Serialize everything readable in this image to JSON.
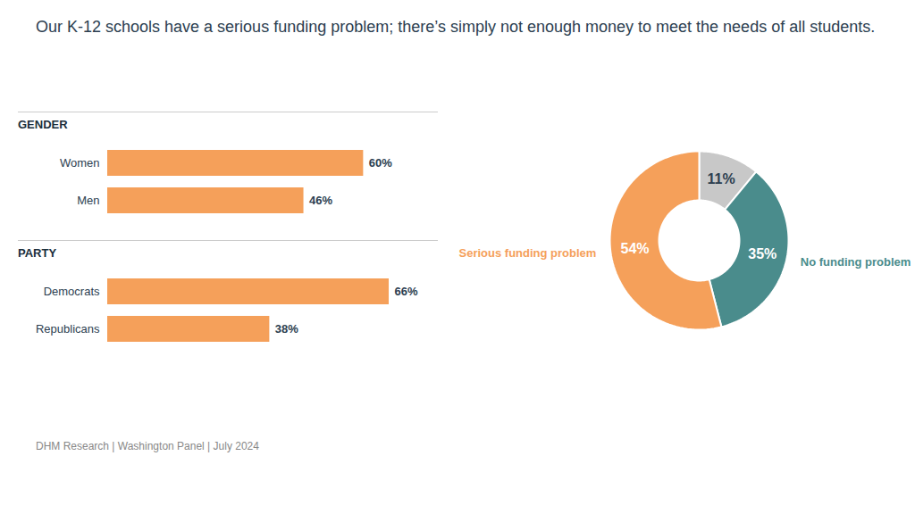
{
  "chart_data": [
    {
      "type": "bar",
      "orientation": "horizontal",
      "title": "Our K-12 schools have a serious funding problem; there’s simply not enough money to meet the needs of all students.",
      "caption": "DHM Research | Washington Panel | July 2024",
      "categories": [
        "Women",
        "Men",
        "Democrats",
        "Republicans"
      ],
      "values": [
        60,
        46,
        66,
        38
      ],
      "value_labels": [
        "60%",
        "46%",
        "66%",
        "38%"
      ],
      "groups": [
        {
          "label": "GENDER",
          "categories": [
            "Women",
            "Men"
          ]
        },
        {
          "label": "PARTY",
          "categories": [
            "Democrats",
            "Republicans"
          ]
        }
      ],
      "color": "#F5A05A",
      "data_labels": true,
      "tick_labels": "y",
      "grid": false
    },
    {
      "type": "pie",
      "categories": [
        null,
        "No funding problem",
        "Serious funding problem"
      ],
      "values": [
        11,
        35,
        54
      ],
      "value_labels": [
        "11%",
        "35%",
        "54%"
      ],
      "colors": [
        "#C8C8C8",
        "#4A8C8C",
        "#F5A05A"
      ],
      "data_labels": true
    }
  ]
}
